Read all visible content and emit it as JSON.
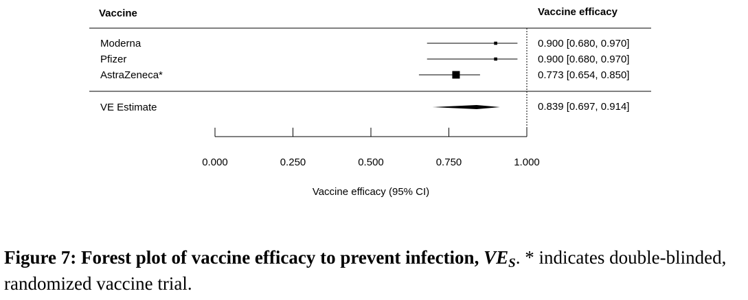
{
  "chart_data": {
    "type": "forest",
    "column_headers": {
      "label": "Vaccine",
      "estimate": "Vaccine efficacy"
    },
    "studies": [
      {
        "name": "Moderna",
        "estimate": 0.9,
        "lower": 0.68,
        "upper": 0.97,
        "ci_text": "0.900 [0.680, 0.970]",
        "weight": 0.2
      },
      {
        "name": "Pfizer",
        "estimate": 0.9,
        "lower": 0.68,
        "upper": 0.97,
        "ci_text": "0.900 [0.680, 0.970]",
        "weight": 0.2
      },
      {
        "name": "AstraZeneca*",
        "estimate": 0.773,
        "lower": 0.654,
        "upper": 0.85,
        "ci_text": "0.773 [0.654, 0.850]",
        "weight": 1.0
      }
    ],
    "pooled": {
      "name": "VE Estimate",
      "estimate": 0.839,
      "lower": 0.697,
      "upper": 0.914,
      "ci_text": "0.839 [0.697, 0.914]"
    },
    "reference_line": 1.0,
    "xlim": [
      0,
      1
    ],
    "ticks": [
      {
        "value": 0.0,
        "label": "0.000"
      },
      {
        "value": 0.25,
        "label": "0.250"
      },
      {
        "value": 0.5,
        "label": "0.500"
      },
      {
        "value": 0.75,
        "label": "0.750"
      },
      {
        "value": 1.0,
        "label": "1.000"
      }
    ],
    "xlabel": "Vaccine efficacy (95% CI)"
  },
  "caption": {
    "label": "Figure 7:",
    "title": "Forest plot of vaccine efficacy to prevent infection,",
    "ve_main": "VE",
    "ve_sub": "S",
    "rest": ". * indicates double-blinded, randomized vaccine trial."
  }
}
